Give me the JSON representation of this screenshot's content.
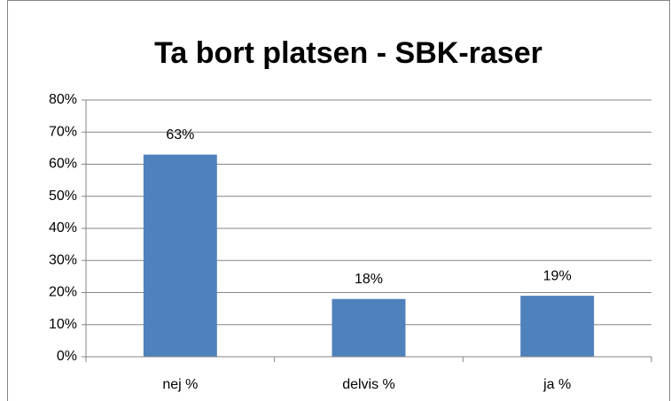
{
  "chart_data": {
    "type": "bar",
    "title": "Ta bort platsen - SBK-raser",
    "categories": [
      "nej %",
      "delvis %",
      "ja %"
    ],
    "values": [
      63,
      18,
      19
    ],
    "value_labels": [
      "63%",
      "18%",
      "19%"
    ],
    "color": "#4f81bd",
    "ylim": [
      0,
      80
    ],
    "yticks": [
      {
        "value": 0,
        "label": "0%"
      },
      {
        "value": 10,
        "label": "10%"
      },
      {
        "value": 20,
        "label": "20%"
      },
      {
        "value": 30,
        "label": "30%"
      },
      {
        "value": 40,
        "label": "40%"
      },
      {
        "value": 50,
        "label": "50%"
      },
      {
        "value": 60,
        "label": "60%"
      },
      {
        "value": 70,
        "label": "70%"
      },
      {
        "value": 80,
        "label": "80%"
      }
    ],
    "grid": true
  }
}
